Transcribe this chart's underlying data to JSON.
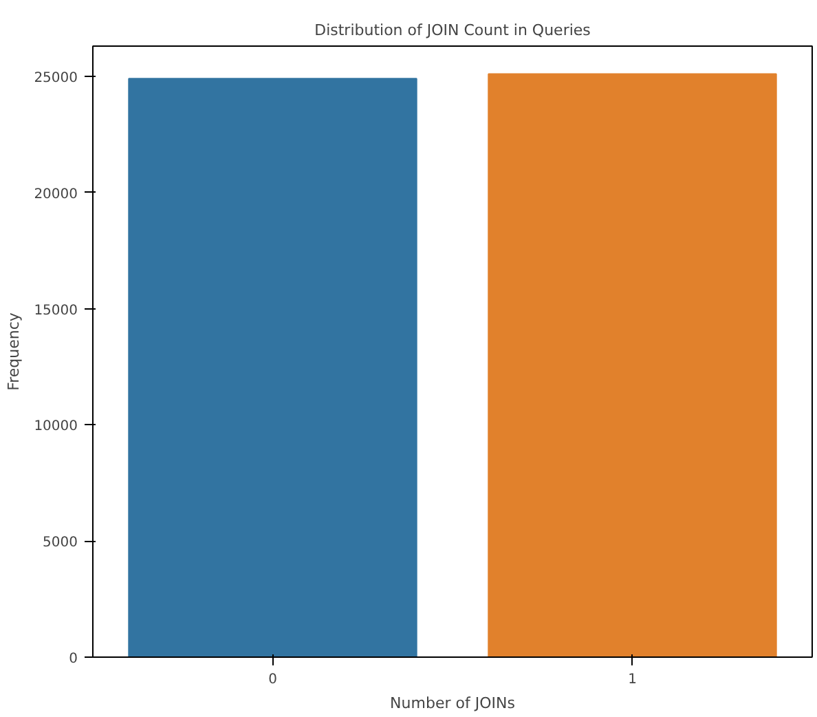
{
  "chart_data": {
    "type": "bar",
    "title": "Distribution of JOIN Count in Queries",
    "xlabel": "Number of JOINs",
    "ylabel": "Frequency",
    "categories": [
      "0",
      "1"
    ],
    "series": [
      {
        "colors": [
          "#3274a1",
          "#e1812c"
        ],
        "values": [
          24900,
          25100
        ]
      }
    ],
    "ylim": [
      0,
      26300
    ],
    "yticks": [
      0,
      5000,
      10000,
      15000,
      20000,
      25000
    ]
  }
}
